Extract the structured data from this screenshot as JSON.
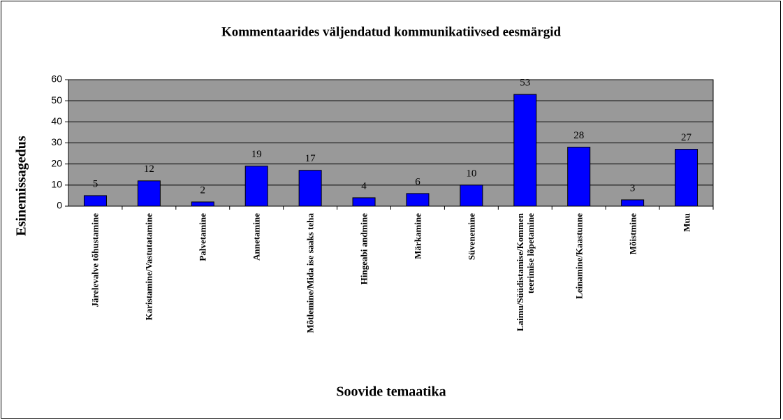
{
  "chart_data": {
    "type": "bar",
    "title": "Kommentaarides väljendatud kommunikatiivsed eesmärgid",
    "x_label": "Soovide temaatika",
    "y_label": "Esinemissagedus",
    "categories": [
      "Järelevalve tõhustamine",
      "Karistamine/Vastutatamine",
      "Palvetamine",
      "Annetamine",
      "Mõtlemine/Mida ise saaks teha",
      "Hingeabi andmine",
      "Märkamine",
      "Süvenemine",
      "Laimu/Süüdistamise/Kommenteerimise lõpetamine",
      "Leinamine/Kaastunne",
      "Mõistmine",
      "Muu"
    ],
    "values": [
      5,
      12,
      2,
      19,
      17,
      4,
      6,
      10,
      53,
      28,
      3,
      27
    ],
    "color": "#0000ff",
    "ylim": [
      0,
      60
    ],
    "yticks": [
      0,
      10,
      20,
      30,
      40,
      50,
      60
    ],
    "grid": true
  }
}
